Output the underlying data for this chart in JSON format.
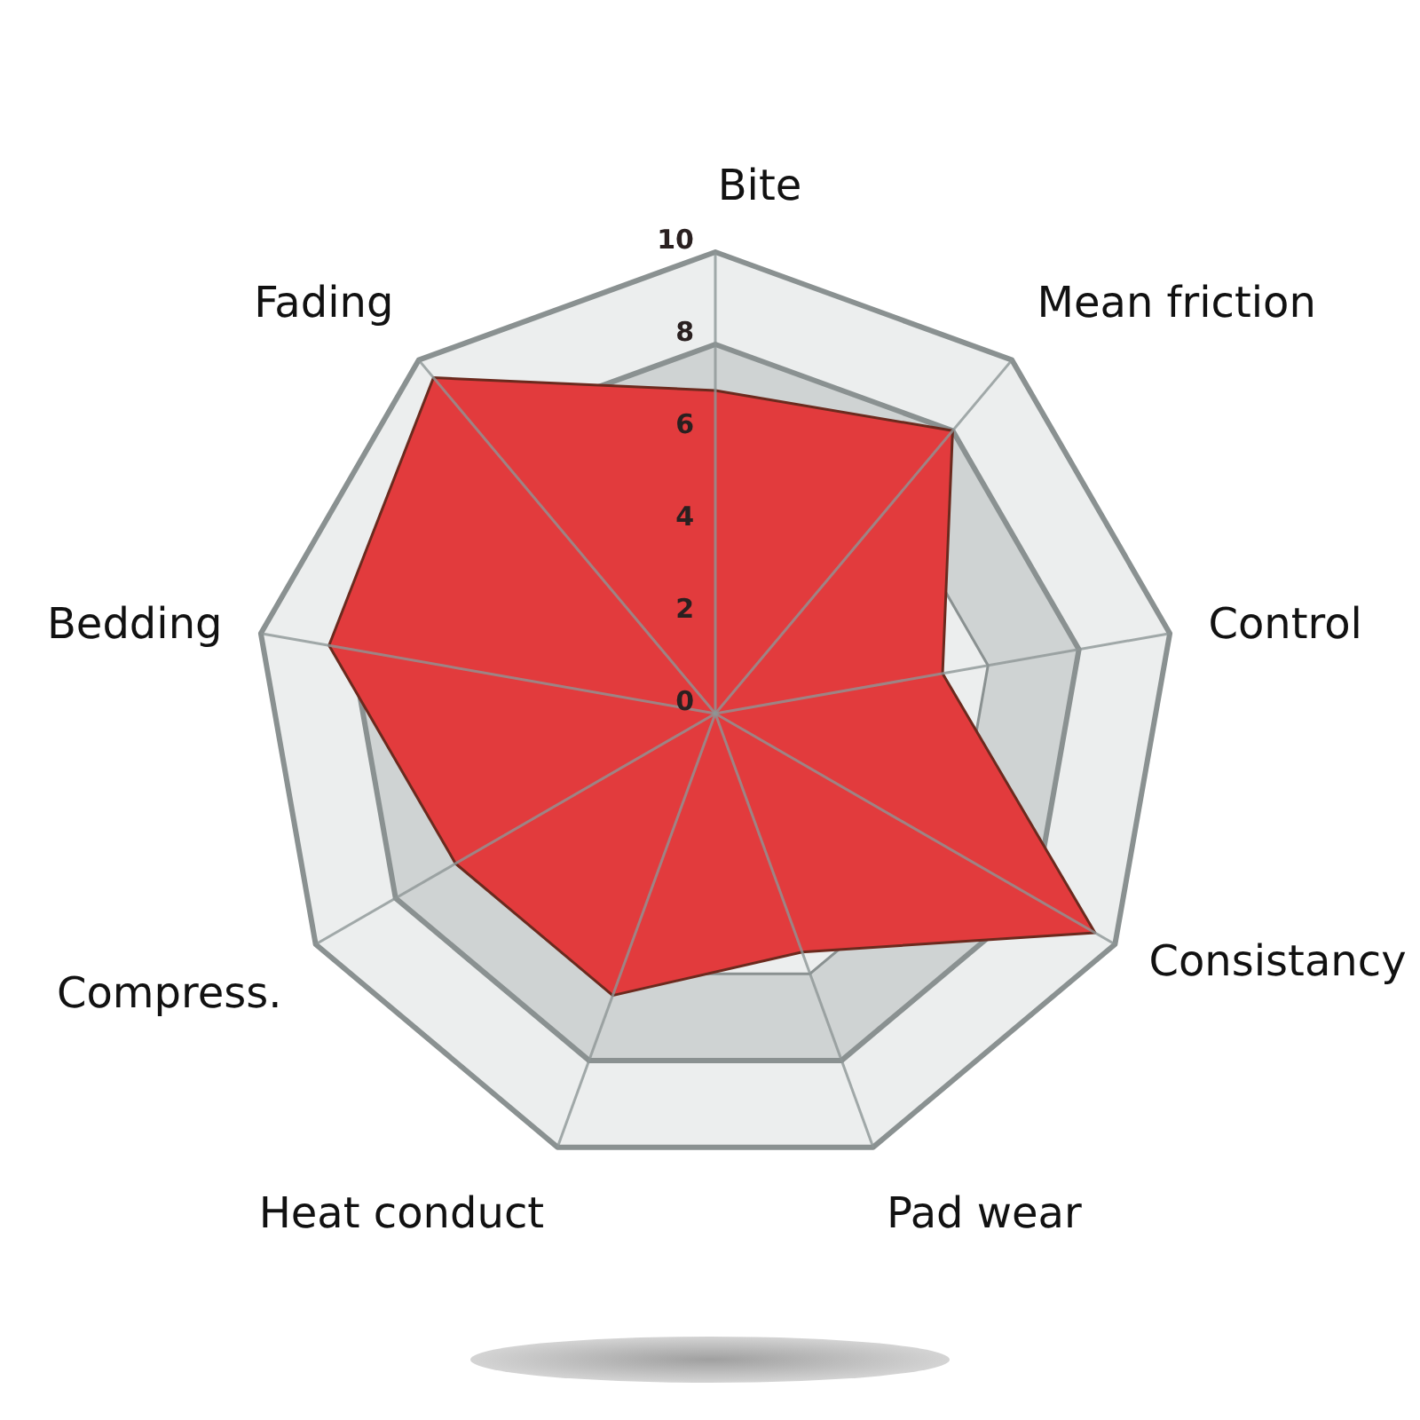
{
  "chart_data": {
    "type": "radar",
    "categories": [
      "Bite",
      "Mean friction",
      "Control",
      "Consistancy",
      "Pad wear",
      "Heat conduct",
      "Compress.",
      "Bedding",
      "Fading"
    ],
    "series": [
      {
        "color": "#e23b3d",
        "values": [
          7,
          8,
          5,
          9.5,
          5.5,
          6.5,
          6.5,
          8.5,
          9.5
        ]
      }
    ],
    "ylim": [
      0,
      10
    ],
    "yticks": [
      0,
      2,
      4,
      6,
      8,
      10
    ],
    "grid": true
  }
}
